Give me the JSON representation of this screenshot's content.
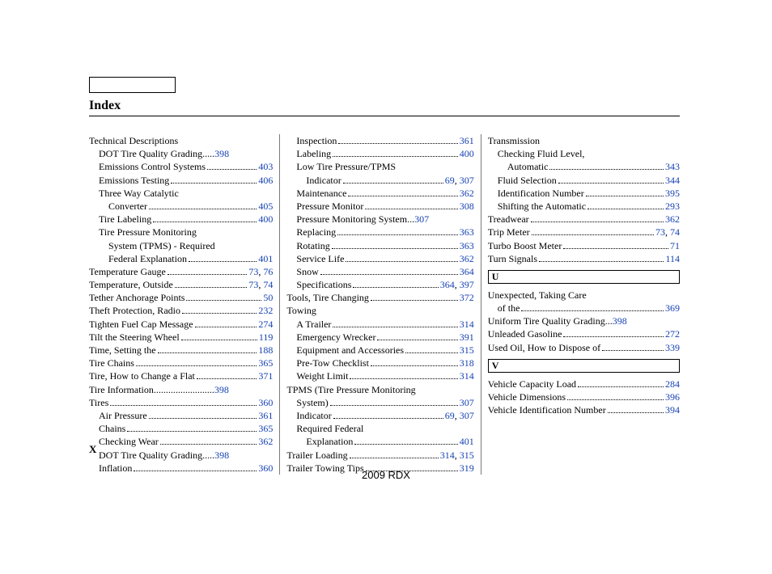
{
  "title": "Index",
  "footer_x": "X",
  "footer_model": "2009  RDX",
  "link_color": "#1641b3",
  "letters": {
    "U": "U",
    "V": "V"
  },
  "columns": [
    [
      {
        "t": "Technical Descriptions",
        "i": 0
      },
      {
        "t": "DOT Tire Quality Grading",
        "p": [
          "398"
        ],
        "i": 1,
        "dots": "  ....."
      },
      {
        "t": "Emissions Control Systems",
        "p": [
          "403"
        ],
        "i": 1
      },
      {
        "t": "Emissions Testing",
        "p": [
          "406"
        ],
        "i": 1
      },
      {
        "t": "Three Way Catalytic",
        "i": 1
      },
      {
        "t": "Converter",
        "p": [
          "405"
        ],
        "i": 2
      },
      {
        "t": "Tire Labeling",
        "p": [
          "400"
        ],
        "i": 1
      },
      {
        "t": "Tire Pressure Monitoring",
        "i": 1
      },
      {
        "t": "System (TPMS) ‐ Required",
        "i": 2
      },
      {
        "t": "Federal Explanation",
        "p": [
          "401"
        ],
        "i": 2
      },
      {
        "t": "Temperature Gauge",
        "p": [
          "73",
          "76"
        ],
        "i": 0
      },
      {
        "t": "Temperature, Outside",
        "p": [
          "73",
          "74"
        ],
        "i": 0
      },
      {
        "t": "Tether Anchorage Points",
        "p": [
          "50"
        ],
        "i": 0
      },
      {
        "t": "Theft Protection, Radio",
        "p": [
          "232"
        ],
        "i": 0
      },
      {
        "t": "Tighten Fuel Cap Message",
        "p": [
          "274"
        ],
        "i": 0
      },
      {
        "t": "Tilt the Steering Wheel",
        "p": [
          "119"
        ],
        "i": 0
      },
      {
        "t": "Time, Setting the",
        "p": [
          "188"
        ],
        "i": 0
      },
      {
        "t": "Tire Chains",
        "p": [
          "365"
        ],
        "i": 0
      },
      {
        "t": "Tire, How to Change a Flat",
        "p": [
          "371"
        ],
        "i": 0
      },
      {
        "t": "Tire Information",
        "p": [
          "398"
        ],
        "i": 0,
        "dots": "  ........................."
      },
      {
        "t": "Tires",
        "p": [
          "360"
        ],
        "i": 0
      },
      {
        "t": "Air Pressure",
        "p": [
          "361"
        ],
        "i": 1
      },
      {
        "t": "Chains",
        "p": [
          "365"
        ],
        "i": 1
      },
      {
        "t": "Checking Wear",
        "p": [
          "362"
        ],
        "i": 1
      },
      {
        "t": "DOT Tire Quality Grading",
        "p": [
          "398"
        ],
        "i": 1,
        "dots": "  ....."
      },
      {
        "t": "Inflation",
        "p": [
          "360"
        ],
        "i": 1
      }
    ],
    [
      {
        "t": "Inspection",
        "p": [
          "361"
        ],
        "i": 1
      },
      {
        "t": "Labeling",
        "p": [
          "400"
        ],
        "i": 1
      },
      {
        "t": "Low Tire Pressure/TPMS",
        "i": 1
      },
      {
        "t": "Indicator",
        "p": [
          "69",
          "307"
        ],
        "i": 2
      },
      {
        "t": "Maintenance",
        "p": [
          "362"
        ],
        "i": 1
      },
      {
        "t": "Pressure Monitor",
        "p": [
          "308"
        ],
        "i": 1
      },
      {
        "t": "Pressure Monitoring System",
        "p": [
          "307"
        ],
        "i": 1,
        "dots": " ..."
      },
      {
        "t": "Replacing",
        "p": [
          "363"
        ],
        "i": 1
      },
      {
        "t": "Rotating",
        "p": [
          "363"
        ],
        "i": 1
      },
      {
        "t": "Service Life",
        "p": [
          "362"
        ],
        "i": 1
      },
      {
        "t": "Snow",
        "p": [
          "364"
        ],
        "i": 1
      },
      {
        "t": "Specifications",
        "p": [
          "364",
          "397"
        ],
        "i": 1
      },
      {
        "t": "Tools, Tire Changing",
        "p": [
          "372"
        ],
        "i": 0
      },
      {
        "t": "Towing",
        "i": 0
      },
      {
        "t": "A Trailer",
        "p": [
          "314"
        ],
        "i": 1
      },
      {
        "t": "Emergency Wrecker",
        "p": [
          "391"
        ],
        "i": 1
      },
      {
        "t": "Equipment and Accessories",
        "p": [
          "315"
        ],
        "i": 1
      },
      {
        "t": "Pre-Tow Checklist",
        "p": [
          "318"
        ],
        "i": 1
      },
      {
        "t": "Weight Limit",
        "p": [
          "314"
        ],
        "i": 1
      },
      {
        "t": "TPMS (Tire Pressure Monitoring",
        "i": 0
      },
      {
        "t": "System)",
        "p": [
          "307"
        ],
        "i": 1
      },
      {
        "t": "Indicator",
        "p": [
          "69",
          "307"
        ],
        "i": 1
      },
      {
        "t": "Required Federal",
        "i": 1
      },
      {
        "t": "Explanation",
        "p": [
          "401"
        ],
        "i": 2
      },
      {
        "t": "Trailer Loading",
        "p": [
          "314",
          "315"
        ],
        "i": 0
      },
      {
        "t": "Trailer Towing Tips",
        "p": [
          "319"
        ],
        "i": 0
      }
    ],
    [
      {
        "t": "Transmission",
        "i": 0
      },
      {
        "t": "Checking Fluid Level,",
        "i": 1
      },
      {
        "t": "Automatic",
        "p": [
          "343"
        ],
        "i": 2
      },
      {
        "t": "Fluid Selection",
        "p": [
          "344"
        ],
        "i": 1
      },
      {
        "t": "Identification Number",
        "p": [
          "395"
        ],
        "i": 1
      },
      {
        "t": "Shifting the Automatic",
        "p": [
          "293"
        ],
        "i": 1
      },
      {
        "t": "Treadwear",
        "p": [
          "362"
        ],
        "i": 0
      },
      {
        "t": "Trip Meter",
        "p": [
          "73",
          "74"
        ],
        "i": 0
      },
      {
        "t": "Turbo Boost Meter",
        "p": [
          "71"
        ],
        "i": 0
      },
      {
        "t": "Turn Signals",
        "p": [
          "114"
        ],
        "i": 0
      },
      {
        "letter": "U"
      },
      {
        "t": "Unexpected, Taking Care",
        "i": 0
      },
      {
        "t": "of the",
        "p": [
          "369"
        ],
        "i": 1
      },
      {
        "t": "Uniform Tire Quality Grading",
        "p": [
          "398"
        ],
        "i": 0,
        "dots": "  ..."
      },
      {
        "t": "Unleaded Gasoline",
        "p": [
          "272"
        ],
        "i": 0
      },
      {
        "t": "Used Oil, How to Dispose of",
        "p": [
          "339"
        ],
        "i": 0
      },
      {
        "letter": "V"
      },
      {
        "t": "Vehicle Capacity Load",
        "p": [
          "284"
        ],
        "i": 0
      },
      {
        "t": "Vehicle Dimensions",
        "p": [
          "396"
        ],
        "i": 0
      },
      {
        "t": "Vehicle Identification Number",
        "p": [
          "394"
        ],
        "i": 0
      }
    ]
  ]
}
